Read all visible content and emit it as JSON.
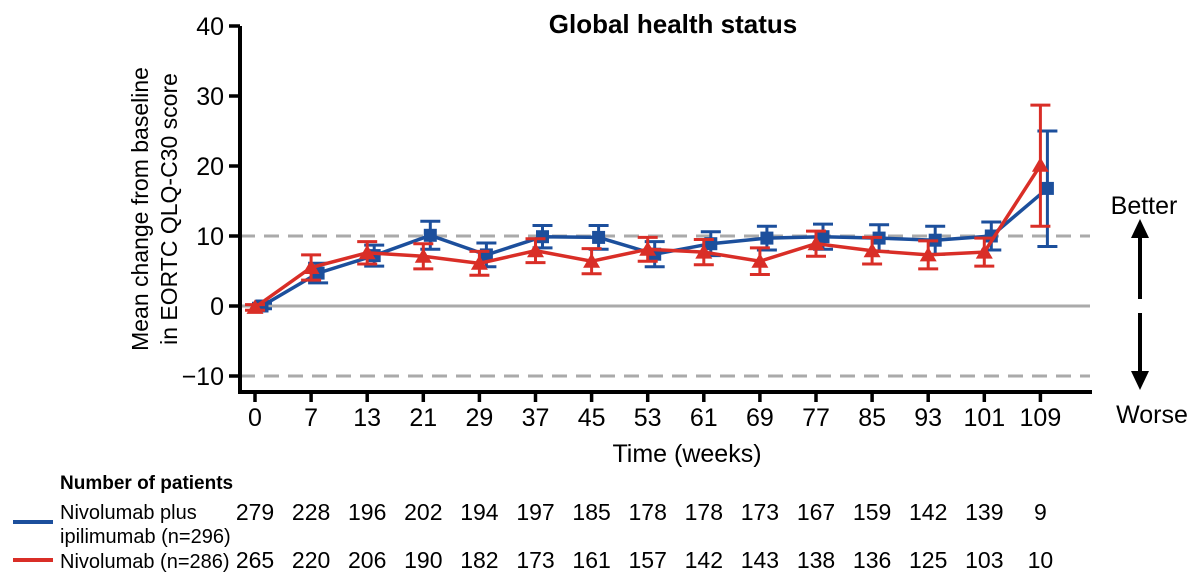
{
  "chart": {
    "title": "Global health status",
    "ylabel_line1": "Mean change from baseline",
    "ylabel_line2": "in EORTC QLQ-C30 score",
    "xlabel": "Time (weeks)",
    "better_label": "Better",
    "worse_label": "Worse"
  },
  "chart_data": {
    "type": "line",
    "title": "Global health status",
    "xlabel": "Time (weeks)",
    "ylabel": "Mean change from baseline in EORTC QLQ-C30 score",
    "x_ticks": [
      0,
      7,
      13,
      21,
      29,
      37,
      45,
      53,
      61,
      69,
      77,
      85,
      93,
      101,
      109
    ],
    "y_ticks": [
      -10,
      0,
      10,
      20,
      30,
      40
    ],
    "ylim": [
      -14,
      40
    ],
    "grid": false,
    "legend_position": "bottom-left",
    "reference_lines": {
      "solid": [
        0
      ],
      "dashed": [
        10,
        -10
      ],
      "color": "#aaaaaa"
    },
    "series": [
      {
        "name": "Nivolumab plus ipilimumab (n=296)",
        "color": "#1c4f9c",
        "marker": "square",
        "values": [
          0.0,
          4.7,
          7.2,
          10.1,
          7.3,
          9.9,
          9.8,
          7.4,
          8.9,
          9.7,
          9.9,
          9.7,
          9.4,
          10.0,
          16.8
        ],
        "ci_low": [
          -0.4,
          3.3,
          5.7,
          8.1,
          5.6,
          8.3,
          8.1,
          5.6,
          7.2,
          8.0,
          8.1,
          7.8,
          7.4,
          8.0,
          8.5
        ],
        "ci_high": [
          0.4,
          6.1,
          8.7,
          12.1,
          9.0,
          11.5,
          11.5,
          9.2,
          10.6,
          11.4,
          11.7,
          11.6,
          11.4,
          12.0,
          25.0
        ]
      },
      {
        "name": "Nivolumab (n=286)",
        "color": "#d92e27",
        "marker": "triangle",
        "values": [
          -0.2,
          5.5,
          7.6,
          7.1,
          6.1,
          7.9,
          6.4,
          8.1,
          7.7,
          6.4,
          8.9,
          7.9,
          7.3,
          7.7,
          20.1
        ],
        "ci_low": [
          -0.6,
          3.7,
          6.0,
          5.3,
          4.4,
          6.2,
          4.6,
          6.4,
          5.9,
          4.5,
          7.1,
          6.0,
          5.3,
          5.7,
          11.4
        ],
        "ci_high": [
          0.2,
          7.3,
          9.2,
          8.9,
          7.8,
          9.6,
          8.2,
          9.8,
          9.5,
          8.3,
          10.7,
          9.8,
          9.3,
          9.7,
          28.7
        ]
      }
    ]
  },
  "patients_table": {
    "heading": "Number of patients",
    "rows": [
      {
        "label_line1": "Nivolumab plus",
        "label_line2": "ipilimumab (n=296)",
        "color": "#1c4f9c",
        "counts": [
          279,
          228,
          196,
          202,
          194,
          197,
          185,
          178,
          178,
          173,
          167,
          159,
          142,
          139,
          9
        ]
      },
      {
        "label_line1": "Nivolumab (n=286)",
        "label_line2": "",
        "color": "#d92e27",
        "counts": [
          265,
          220,
          206,
          190,
          182,
          173,
          161,
          157,
          142,
          143,
          138,
          136,
          125,
          103,
          10
        ]
      }
    ]
  }
}
